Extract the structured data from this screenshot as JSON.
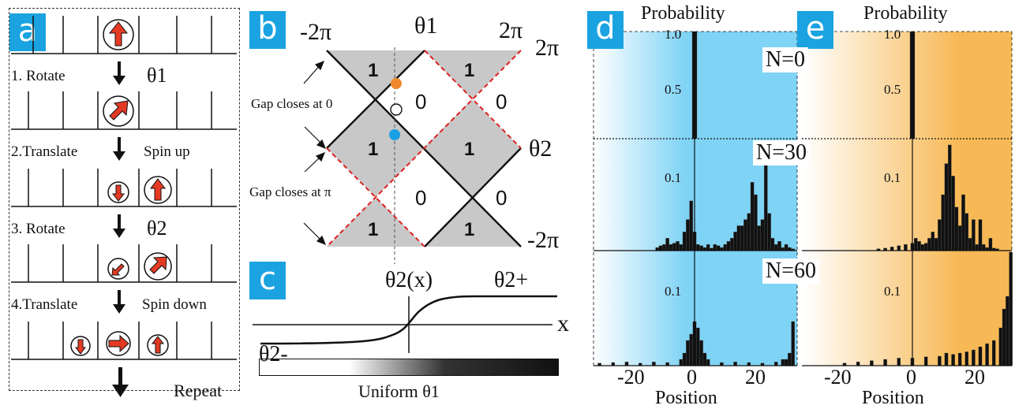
{
  "panel_a": {
    "badge": "a",
    "steps": [
      {
        "label": "1. Rotate",
        "angle": "θ1",
        "note": ""
      },
      {
        "label": "2.Translate",
        "angle": "",
        "note": "Spin up"
      },
      {
        "label": "3. Rotate",
        "angle": "θ2",
        "note": ""
      },
      {
        "label": "4.Translate",
        "angle": "",
        "note": "Spin down"
      }
    ],
    "repeat": "Repeat"
  },
  "panel_b": {
    "badge": "b",
    "top_left": "-2π",
    "top_mid": "θ1",
    "top_right": "2π",
    "right_top": "2π",
    "right_mid": "θ2",
    "right_bottom": "-2π",
    "gap0": "Gap closes at 0",
    "gappi": "Gap closes at π",
    "one": "1",
    "zero": "0"
  },
  "panel_c": {
    "badge": "c",
    "theta_x": "θ2(x)",
    "theta_plus": "θ2+",
    "theta_minus": "θ2-",
    "x_label": "x",
    "uniform": "Uniform θ1"
  },
  "panel_d": {
    "badge": "d",
    "ylabel": "Probability",
    "xlabel": "Position",
    "ticks_y_top": [
      "1.0",
      "0.5"
    ],
    "tick_y_small": "0.1",
    "ticks_x": [
      "-20",
      "0",
      "20"
    ],
    "n_labels": [
      "N=0",
      "N=30",
      "N=60"
    ],
    "color": "#7fd3f5"
  },
  "panel_e": {
    "badge": "e",
    "ylabel": "Probability",
    "xlabel": "Position",
    "ticks_y_top": [
      "1.0",
      "0.5"
    ],
    "tick_y_small": "0.1",
    "ticks_x": [
      "-20",
      "0",
      "20"
    ],
    "color": "#f7b955"
  },
  "chart_data": [
    {
      "type": "bar",
      "panel": "d",
      "series": [
        {
          "name": "N=0",
          "x": [
            0
          ],
          "values": [
            1.0
          ]
        },
        {
          "name": "N=30",
          "x": [
            -11,
            -10,
            -9,
            -8,
            -7,
            -6,
            -5,
            -4,
            -3,
            -2,
            -1,
            0,
            1,
            2,
            3,
            4,
            5,
            6,
            7,
            8,
            9,
            10,
            11,
            12,
            13,
            14,
            15,
            16,
            17,
            18,
            19,
            20,
            21,
            22,
            23,
            24,
            25,
            26,
            27,
            28,
            29
          ],
          "values": [
            0.005,
            0.008,
            0.01,
            0.02,
            0.01,
            0.012,
            0.015,
            0.01,
            0.03,
            0.05,
            0.08,
            0.03,
            0.01,
            0.008,
            0.005,
            0.01,
            0.004,
            0.01,
            0.008,
            0.005,
            0.01,
            0.015,
            0.02,
            0.03,
            0.04,
            0.04,
            0.05,
            0.06,
            0.11,
            0.09,
            0.04,
            0.05,
            0.16,
            0.06,
            0.02,
            0.01,
            0.015,
            0.005,
            0.01,
            0.005,
            0.003
          ]
        },
        {
          "name": "N=60",
          "x": [
            -28,
            -24,
            -20,
            -16,
            -12,
            -8,
            -4,
            -3,
            -2,
            -1,
            0,
            1,
            2,
            3,
            4,
            8,
            12,
            16,
            20,
            24,
            26,
            27,
            28,
            29
          ],
          "values": [
            0.004,
            0.005,
            0.006,
            0.004,
            0.006,
            0.005,
            0.01,
            0.02,
            0.04,
            0.05,
            0.07,
            0.06,
            0.04,
            0.02,
            0.01,
            0.005,
            0.006,
            0.005,
            0.004,
            0.006,
            0.01,
            0.01,
            0.02,
            0.07
          ]
        }
      ]
    },
    {
      "type": "bar",
      "panel": "e",
      "series": [
        {
          "name": "N=0",
          "x": [
            0
          ],
          "values": [
            1.0
          ]
        },
        {
          "name": "N=30",
          "x": [
            -10,
            -8,
            -6,
            -4,
            -2,
            0,
            1,
            2,
            3,
            4,
            5,
            6,
            7,
            8,
            9,
            10,
            11,
            12,
            13,
            14,
            15,
            16,
            17,
            18,
            19,
            20,
            21,
            22,
            23,
            24,
            25
          ],
          "values": [
            0.003,
            0.004,
            0.006,
            0.008,
            0.01,
            0.012,
            0.02,
            0.015,
            0.01,
            0.012,
            0.02,
            0.03,
            0.02,
            0.05,
            0.09,
            0.14,
            0.17,
            0.12,
            0.07,
            0.04,
            0.09,
            0.06,
            0.02,
            0.05,
            0.01,
            0.05,
            0.01,
            0.005,
            0.02,
            0.004,
            0.003
          ]
        },
        {
          "name": "N=60",
          "x": [
            -20,
            -16,
            -12,
            -8,
            -4,
            0,
            4,
            8,
            10,
            12,
            14,
            16,
            18,
            20,
            22,
            24,
            26,
            27,
            28,
            29
          ],
          "values": [
            0.004,
            0.006,
            0.008,
            0.01,
            0.012,
            0.012,
            0.014,
            0.015,
            0.02,
            0.018,
            0.02,
            0.022,
            0.025,
            0.03,
            0.035,
            0.04,
            0.06,
            0.09,
            0.11,
            0.18
          ]
        }
      ]
    }
  ]
}
